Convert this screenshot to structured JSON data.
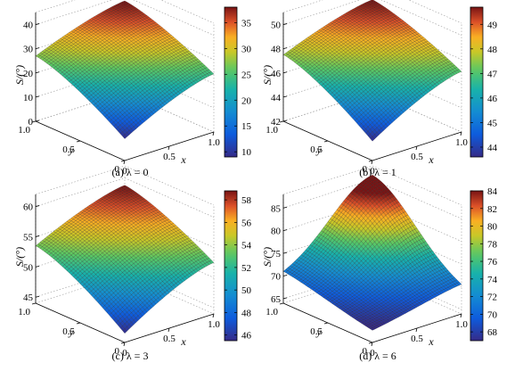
{
  "chart_data": [
    {
      "type": "surface",
      "caption": "(a) λ = 0",
      "zlabel": "S/(°)",
      "xlabel": "x",
      "ylabel": "y",
      "x_ticks": [
        "0",
        "0.5",
        "1.0"
      ],
      "y_ticks": [
        "0",
        "0.5",
        "1.0"
      ],
      "z_ticks": [
        "0",
        "10",
        "20",
        "30",
        "40"
      ],
      "zlim": [
        0,
        45
      ],
      "colorbar": {
        "min": 9,
        "max": 38,
        "ticks": [
          "10",
          "15",
          "20",
          "25",
          "30",
          "35"
        ]
      },
      "surface": {
        "x": [
          0,
          1
        ],
        "y": [
          0,
          1
        ],
        "corner_values": {
          "x0_y0": 9,
          "x1_y0": 24,
          "x0_y1": 27,
          "x1_y1": 38
        }
      }
    },
    {
      "type": "surface",
      "caption": "(b) λ = 1",
      "zlabel": "S/(°)",
      "xlabel": "x",
      "ylabel": "y",
      "x_ticks": [
        "0",
        "0.5",
        "1.0"
      ],
      "y_ticks": [
        "0",
        "0.5",
        "1.0"
      ],
      "z_ticks": [
        "42",
        "44",
        "46",
        "48",
        "50"
      ],
      "zlim": [
        42,
        51
      ],
      "colorbar": {
        "min": 43.6,
        "max": 49.7,
        "ticks": [
          "44",
          "45",
          "46",
          "47",
          "48",
          "49"
        ]
      },
      "surface": {
        "x": [
          0,
          1
        ],
        "y": [
          0,
          1
        ],
        "corner_values": {
          "x0_y0": 43.6,
          "x1_y0": 47,
          "x0_y1": 47.5,
          "x1_y1": 49.7
        }
      }
    },
    {
      "type": "surface",
      "caption": "(c) λ = 3",
      "zlabel": "S/(°)",
      "xlabel": "x",
      "ylabel": "y",
      "x_ticks": [
        "0",
        "0.5",
        "1.0"
      ],
      "y_ticks": [
        "0",
        "0.5",
        "1.0"
      ],
      "z_ticks": [
        "45",
        "50",
        "55",
        "60"
      ],
      "zlim": [
        44,
        62
      ],
      "colorbar": {
        "min": 45.5,
        "max": 58.8,
        "ticks": [
          "46",
          "48",
          "50",
          "52",
          "54",
          "56",
          "58"
        ]
      },
      "surface": {
        "x": [
          0,
          1
        ],
        "y": [
          0,
          1
        ],
        "corner_values": {
          "x0_y0": 45.5,
          "x1_y0": 52.5,
          "x0_y1": 53.5,
          "x1_y1": 58.8
        }
      }
    },
    {
      "type": "surface",
      "caption": "(d) λ = 6",
      "zlabel": "S/(°)",
      "xlabel": "x",
      "ylabel": "y",
      "x_ticks": [
        "0",
        "0.5",
        "1.0"
      ],
      "y_ticks": [
        "0",
        "0.5",
        "1.0"
      ],
      "z_ticks": [
        "65",
        "70",
        "75",
        "80",
        "85"
      ],
      "zlim": [
        64,
        88
      ],
      "colorbar": {
        "min": 67,
        "max": 84,
        "ticks": [
          "68",
          "70",
          "72",
          "74",
          "76",
          "78",
          "80",
          "82",
          "84"
        ]
      },
      "surface": {
        "x": [
          0,
          1
        ],
        "y": [
          0,
          1
        ],
        "corner_values": {
          "x0_y0": 67,
          "x1_y0": 69.5,
          "x0_y1": 70,
          "x1_y1": 84
        }
      }
    }
  ]
}
